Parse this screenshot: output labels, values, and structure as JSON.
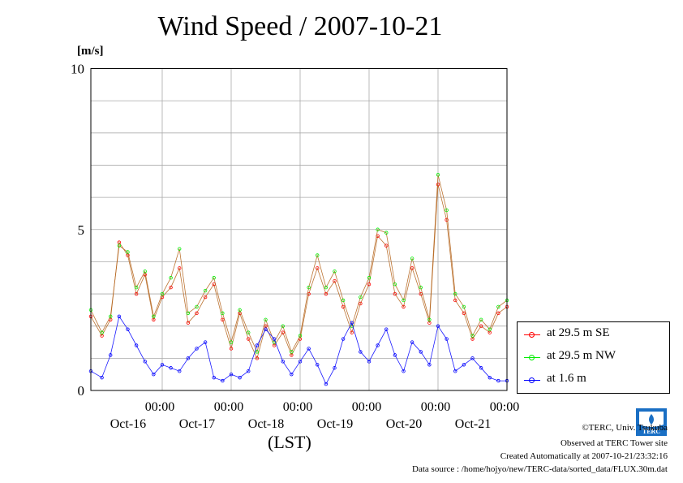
{
  "header": {
    "title": "Wind Speed / 2007-10-21"
  },
  "axes": {
    "y_unit": "[m/s]",
    "x_title": "(LST)"
  },
  "footer": {
    "copyright": "©TERC, Univ. Tsukuba",
    "observed": "Observed at TERC Tower site",
    "created": "Created Automatically at 2007-10-21/23:32:16",
    "source": "Data source : /home/hojyo/new/TERC-data/sorted_data/FLUX.30m.dat"
  },
  "logo": {
    "text": "TERC"
  },
  "chart_data": {
    "type": "line",
    "title": "Wind Speed / 2007-10-21",
    "ylabel": "[m/s]",
    "xlabel": "(LST)",
    "ylim": [
      0,
      10
    ],
    "xlim": [
      -1.035,
      5.0
    ],
    "y_ticks": [
      0,
      5,
      10
    ],
    "y_ticklabels": [
      "0",
      "5",
      "10"
    ],
    "x_ticks": [
      0,
      1,
      2,
      3,
      4,
      5
    ],
    "x_ticklabels": [
      {
        "time": "00:00",
        "date": "Oct-16"
      },
      {
        "time": "00:00",
        "date": "Oct-17"
      },
      {
        "time": "00:00",
        "date": "Oct-18"
      },
      {
        "time": "00:00",
        "date": "Oct-19"
      },
      {
        "time": "00:00",
        "date": "Oct-20"
      },
      {
        "time": "00:00",
        "date": "Oct-21"
      }
    ],
    "x_unit": "days (00:00 LST of each labelled date = tick)",
    "grid": true,
    "legend_position": "outside-right",
    "series": [
      {
        "name": "at 29.5 m SE",
        "color": "#ff0000",
        "x": [
          -1.035,
          -0.875,
          -0.75,
          -0.625,
          -0.5,
          -0.375,
          -0.25,
          -0.125,
          0.0,
          0.125,
          0.25,
          0.375,
          0.5,
          0.625,
          0.75,
          0.875,
          1.0,
          1.125,
          1.25,
          1.375,
          1.5,
          1.625,
          1.75,
          1.875,
          2.0,
          2.125,
          2.25,
          2.375,
          2.5,
          2.625,
          2.75,
          2.875,
          3.0,
          3.125,
          3.25,
          3.375,
          3.5,
          3.625,
          3.75,
          3.875,
          4.0,
          4.125,
          4.25,
          4.375,
          4.5,
          4.625,
          4.75,
          4.875,
          5.0
        ],
        "y": [
          2.3,
          1.7,
          2.2,
          4.6,
          4.2,
          3.0,
          3.6,
          2.2,
          2.9,
          3.2,
          3.8,
          2.1,
          2.4,
          2.9,
          3.3,
          2.2,
          1.3,
          2.4,
          1.6,
          1.0,
          2.0,
          1.4,
          1.8,
          1.1,
          1.6,
          3.0,
          3.8,
          3.0,
          3.4,
          2.6,
          1.8,
          2.7,
          3.3,
          4.8,
          4.5,
          3.0,
          2.6,
          3.8,
          3.0,
          2.1,
          6.4,
          5.3,
          2.8,
          2.4,
          1.6,
          2.0,
          1.8,
          2.4,
          2.6
        ]
      },
      {
        "name": "at 29.5 m NW",
        "color": "#00ee00",
        "x": [
          -1.035,
          -0.875,
          -0.75,
          -0.625,
          -0.5,
          -0.375,
          -0.25,
          -0.125,
          0.0,
          0.125,
          0.25,
          0.375,
          0.5,
          0.625,
          0.75,
          0.875,
          1.0,
          1.125,
          1.25,
          1.375,
          1.5,
          1.625,
          1.75,
          1.875,
          2.0,
          2.125,
          2.25,
          2.375,
          2.5,
          2.625,
          2.75,
          2.875,
          3.0,
          3.125,
          3.25,
          3.375,
          3.5,
          3.625,
          3.75,
          3.875,
          4.0,
          4.125,
          4.25,
          4.375,
          4.5,
          4.625,
          4.75,
          4.875,
          5.0
        ],
        "y": [
          2.5,
          1.8,
          2.3,
          4.5,
          4.3,
          3.2,
          3.7,
          2.3,
          3.0,
          3.5,
          4.4,
          2.4,
          2.6,
          3.1,
          3.5,
          2.4,
          1.5,
          2.5,
          1.8,
          1.2,
          2.2,
          1.5,
          2.0,
          1.2,
          1.7,
          3.2,
          4.2,
          3.2,
          3.7,
          2.8,
          2.0,
          2.9,
          3.5,
          5.0,
          4.9,
          3.3,
          2.8,
          4.1,
          3.2,
          2.2,
          6.7,
          5.6,
          3.0,
          2.6,
          1.7,
          2.2,
          1.9,
          2.6,
          2.8
        ]
      },
      {
        "name": "at 1.6 m",
        "color": "#0000ff",
        "x": [
          -1.035,
          -0.875,
          -0.75,
          -0.625,
          -0.5,
          -0.375,
          -0.25,
          -0.125,
          0.0,
          0.125,
          0.25,
          0.375,
          0.5,
          0.625,
          0.75,
          0.875,
          1.0,
          1.125,
          1.25,
          1.375,
          1.5,
          1.625,
          1.75,
          1.875,
          2.0,
          2.125,
          2.25,
          2.375,
          2.5,
          2.625,
          2.75,
          2.875,
          3.0,
          3.125,
          3.25,
          3.375,
          3.5,
          3.625,
          3.75,
          3.875,
          4.0,
          4.125,
          4.25,
          4.375,
          4.5,
          4.625,
          4.75,
          4.875,
          5.0
        ],
        "y": [
          0.6,
          0.4,
          1.1,
          2.3,
          1.9,
          1.4,
          0.9,
          0.5,
          0.8,
          0.7,
          0.6,
          1.0,
          1.3,
          1.5,
          0.4,
          0.3,
          0.5,
          0.4,
          0.6,
          1.4,
          1.9,
          1.6,
          0.9,
          0.5,
          0.9,
          1.3,
          0.8,
          0.2,
          0.7,
          1.6,
          2.1,
          1.2,
          0.9,
          1.4,
          1.9,
          1.1,
          0.6,
          1.5,
          1.2,
          0.8,
          2.0,
          1.6,
          0.6,
          0.8,
          1.0,
          0.7,
          0.4,
          0.3,
          0.3
        ]
      }
    ]
  }
}
